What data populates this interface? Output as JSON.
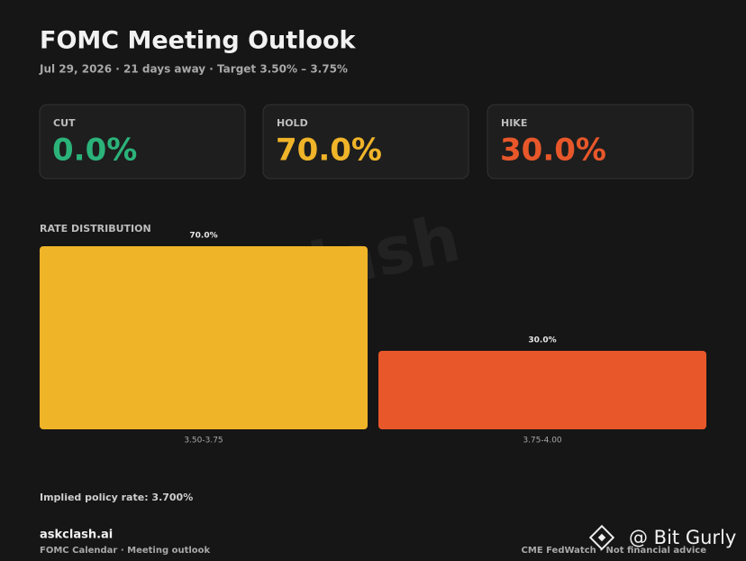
{
  "header": {
    "title": "FOMC Meeting Outlook",
    "subtitle": "Jul 29, 2026 · 21 days away · Target 3.50% – 3.75%"
  },
  "cards": [
    {
      "label": "CUT",
      "value": "0.0%",
      "color": "#2bb37a"
    },
    {
      "label": "HOLD",
      "value": "70.0%",
      "color": "#f0b429"
    },
    {
      "label": "HIKE",
      "value": "30.0%",
      "color": "#e8572a"
    }
  ],
  "chart_data": {
    "type": "bar",
    "title": "RATE DISTRIBUTION",
    "categories": [
      "3.50-3.75",
      "3.75-4.00"
    ],
    "values": [
      70,
      30
    ],
    "value_labels": [
      "70.0%",
      "30.0%"
    ],
    "colors": [
      "#f0b429",
      "#e8572a"
    ]
  },
  "implied": "Implied policy rate: 3.700%",
  "watermark": "Clash",
  "footer": {
    "site": "askclash.ai",
    "left": "FOMC Calendar · Meeting outlook",
    "right": "CME FedWatch · Not financial advice"
  },
  "overlay": "@ Bit Gurly"
}
